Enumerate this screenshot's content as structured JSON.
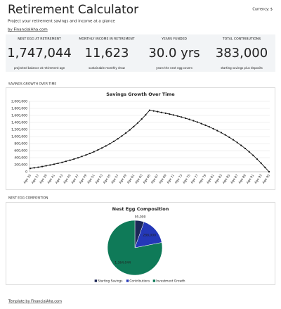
{
  "header": {
    "title": "Retirement Calculator",
    "subtitle": "Project your retirement savings and income at a glance",
    "byline": "by FinancialAha.com",
    "currency": "Currency: $"
  },
  "kpis": [
    {
      "label": "NEST EGG AT RETIREMENT",
      "value": "1,747,044",
      "caption": "projected balance at retirement age",
      "color": "#1b2333"
    },
    {
      "label": "MONTHLY INCOME IN RETIREMENT",
      "value": "11,623",
      "caption": "sustainable monthly draw",
      "color": "#1d7a4c"
    },
    {
      "label": "YEARS FUNDED",
      "value": "30.0 yrs",
      "caption": "years the nest egg covers",
      "color": "#c98a2e"
    },
    {
      "label": "TOTAL CONTRIBUTIONS",
      "value": "383,000",
      "caption": "starting savings plus deposits",
      "color": "#1b2333"
    }
  ],
  "sections": [
    "SAVINGS GROWTH OVER TIME",
    "NEST EGG COMPOSITION"
  ],
  "chart_data": [
    {
      "type": "line",
      "title": "Savings Growth Over Time",
      "color": "#111111",
      "grid": true,
      "categories": [
        "Age 35",
        null,
        "Age 37",
        null,
        "Age 39",
        null,
        "Age 41",
        null,
        "Age 43",
        null,
        "Age 45",
        null,
        "Age 47",
        null,
        "Age 49",
        null,
        "Age 51",
        null,
        "Age 53",
        null,
        "Age 55",
        null,
        "Age 57",
        null,
        "Age 59",
        null,
        "Age 61",
        null,
        "Age 63",
        null,
        "Age 65",
        null,
        "Age 67",
        null,
        "Age 69",
        null,
        "Age 71",
        null,
        "Age 73",
        null,
        "Age 75",
        null,
        "Age 77",
        null,
        "Age 79",
        null,
        "Age 81",
        null,
        "Age 83",
        null,
        "Age 85",
        null,
        "Age 87",
        null,
        "Age 89",
        null,
        "Age 91",
        null,
        "Age 93",
        null,
        "Age 95"
      ],
      "values": [
        95000,
        112000,
        129000,
        148000,
        169000,
        191000,
        214000,
        239000,
        266000,
        296000,
        327000,
        360000,
        396000,
        435000,
        476000,
        520000,
        568000,
        619000,
        674000,
        732000,
        795000,
        863000,
        936000,
        1014000,
        1097000,
        1187000,
        1283000,
        1386000,
        1497000,
        1616000,
        1747044,
        1728000,
        1708000,
        1686000,
        1663000,
        1638000,
        1612000,
        1584000,
        1554000,
        1521000,
        1487000,
        1450000,
        1410000,
        1368000,
        1323000,
        1275000,
        1223000,
        1168000,
        1110000,
        1047000,
        979000,
        907000,
        831000,
        748000,
        661000,
        567000,
        466000,
        359000,
        244000,
        122000,
        0
      ],
      "ylim": [
        0,
        2000000
      ],
      "yticks": [
        {
          "value": 0,
          "label": "0"
        },
        {
          "value": 200000,
          "label": "200,000"
        },
        {
          "value": 400000,
          "label": "400,000"
        },
        {
          "value": 600000,
          "label": "600,000"
        },
        {
          "value": 800000,
          "label": "800,000"
        },
        {
          "value": 1000000,
          "label": "1,000,000"
        },
        {
          "value": 1200000,
          "label": "1,200,000"
        },
        {
          "value": 1400000,
          "label": "1,400,000"
        },
        {
          "value": 1600000,
          "label": "1,600,000"
        },
        {
          "value": 1800000,
          "label": "1,800,000"
        },
        {
          "value": 2000000,
          "label": "2,000,000"
        }
      ]
    },
    {
      "type": "pie",
      "title": "Nest Egg Composition",
      "legend": "bottom",
      "categories": [
        "Starting Savings",
        "Contributions",
        "Investment Growth"
      ],
      "values": [
        95000,
        288000,
        1364044
      ],
      "value_labels": [
        "95,000",
        "288,000",
        "1,364,044"
      ],
      "colors": [
        "#1c2757",
        "#2438b8",
        "#0f7a58"
      ]
    }
  ],
  "footer": {
    "link": "Template by FinancialAha.com"
  }
}
